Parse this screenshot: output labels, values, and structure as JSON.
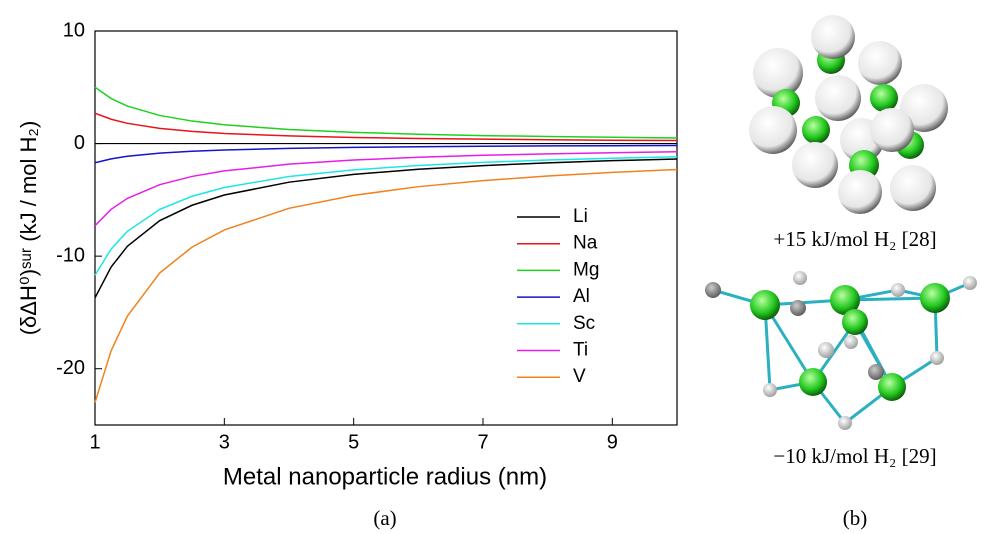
{
  "chart_data": {
    "type": "line",
    "xlabel": "Metal nanoparticle radius (nm)",
    "ylabel": "(δΔH⁰)ˢᵘʳ (kJ / mol H₂)",
    "x": [
      1,
      1.25,
      1.5,
      2,
      2.5,
      3,
      4,
      5,
      6,
      7,
      8,
      9,
      10
    ],
    "series": [
      {
        "name": "Li",
        "color": "#000000",
        "values": [
          -13.7,
          -10.96,
          -9.13,
          -6.85,
          -5.48,
          -4.57,
          -3.43,
          -2.74,
          -2.28,
          -1.96,
          -1.71,
          -1.52,
          -1.37
        ]
      },
      {
        "name": "Na",
        "color": "#e8141b",
        "values": [
          2.7,
          2.16,
          1.8,
          1.35,
          1.08,
          0.9,
          0.68,
          0.54,
          0.45,
          0.39,
          0.34,
          0.3,
          0.27
        ]
      },
      {
        "name": "Mg",
        "color": "#1fd11f",
        "values": [
          5,
          4,
          3.33,
          2.5,
          2,
          1.67,
          1.25,
          1,
          0.83,
          0.71,
          0.63,
          0.56,
          0.5
        ]
      },
      {
        "name": "Al",
        "color": "#1414c8",
        "values": [
          -1.7,
          -1.36,
          -1.13,
          -0.85,
          -0.68,
          -0.57,
          -0.43,
          -0.34,
          -0.28,
          -0.24,
          -0.21,
          -0.19,
          -0.17
        ]
      },
      {
        "name": "Sc",
        "color": "#1ee6e6",
        "values": [
          -11.7,
          -9.36,
          -7.8,
          -5.85,
          -4.68,
          -3.9,
          -2.93,
          -2.34,
          -1.95,
          -1.67,
          -1.46,
          -1.3,
          -1.17
        ]
      },
      {
        "name": "Ti",
        "color": "#e61ee6",
        "values": [
          -7.3,
          -5.84,
          -4.87,
          -3.65,
          -2.92,
          -2.43,
          -1.83,
          -1.46,
          -1.22,
          -1.04,
          -0.91,
          -0.81,
          -0.73
        ]
      },
      {
        "name": "V",
        "color": "#f0821e",
        "values": [
          -23,
          -18.4,
          -15.33,
          -11.5,
          -9.2,
          -7.67,
          -5.75,
          -4.6,
          -3.83,
          -3.29,
          -2.88,
          -2.56,
          -2.3
        ]
      }
    ],
    "xlim": [
      1,
      10
    ],
    "xticks": [
      1,
      3,
      5,
      7,
      9
    ],
    "ylim": [
      -25,
      10
    ],
    "yticks": [
      -20,
      -10,
      0,
      10
    ],
    "zero_line": true,
    "legend": "lower right"
  },
  "panel_labels": [
    "(a)",
    "(b)"
  ],
  "captions": [
    "+15 kJ/mol H₂ [28]",
    "−10 kJ/mol H₂ [29]"
  ]
}
